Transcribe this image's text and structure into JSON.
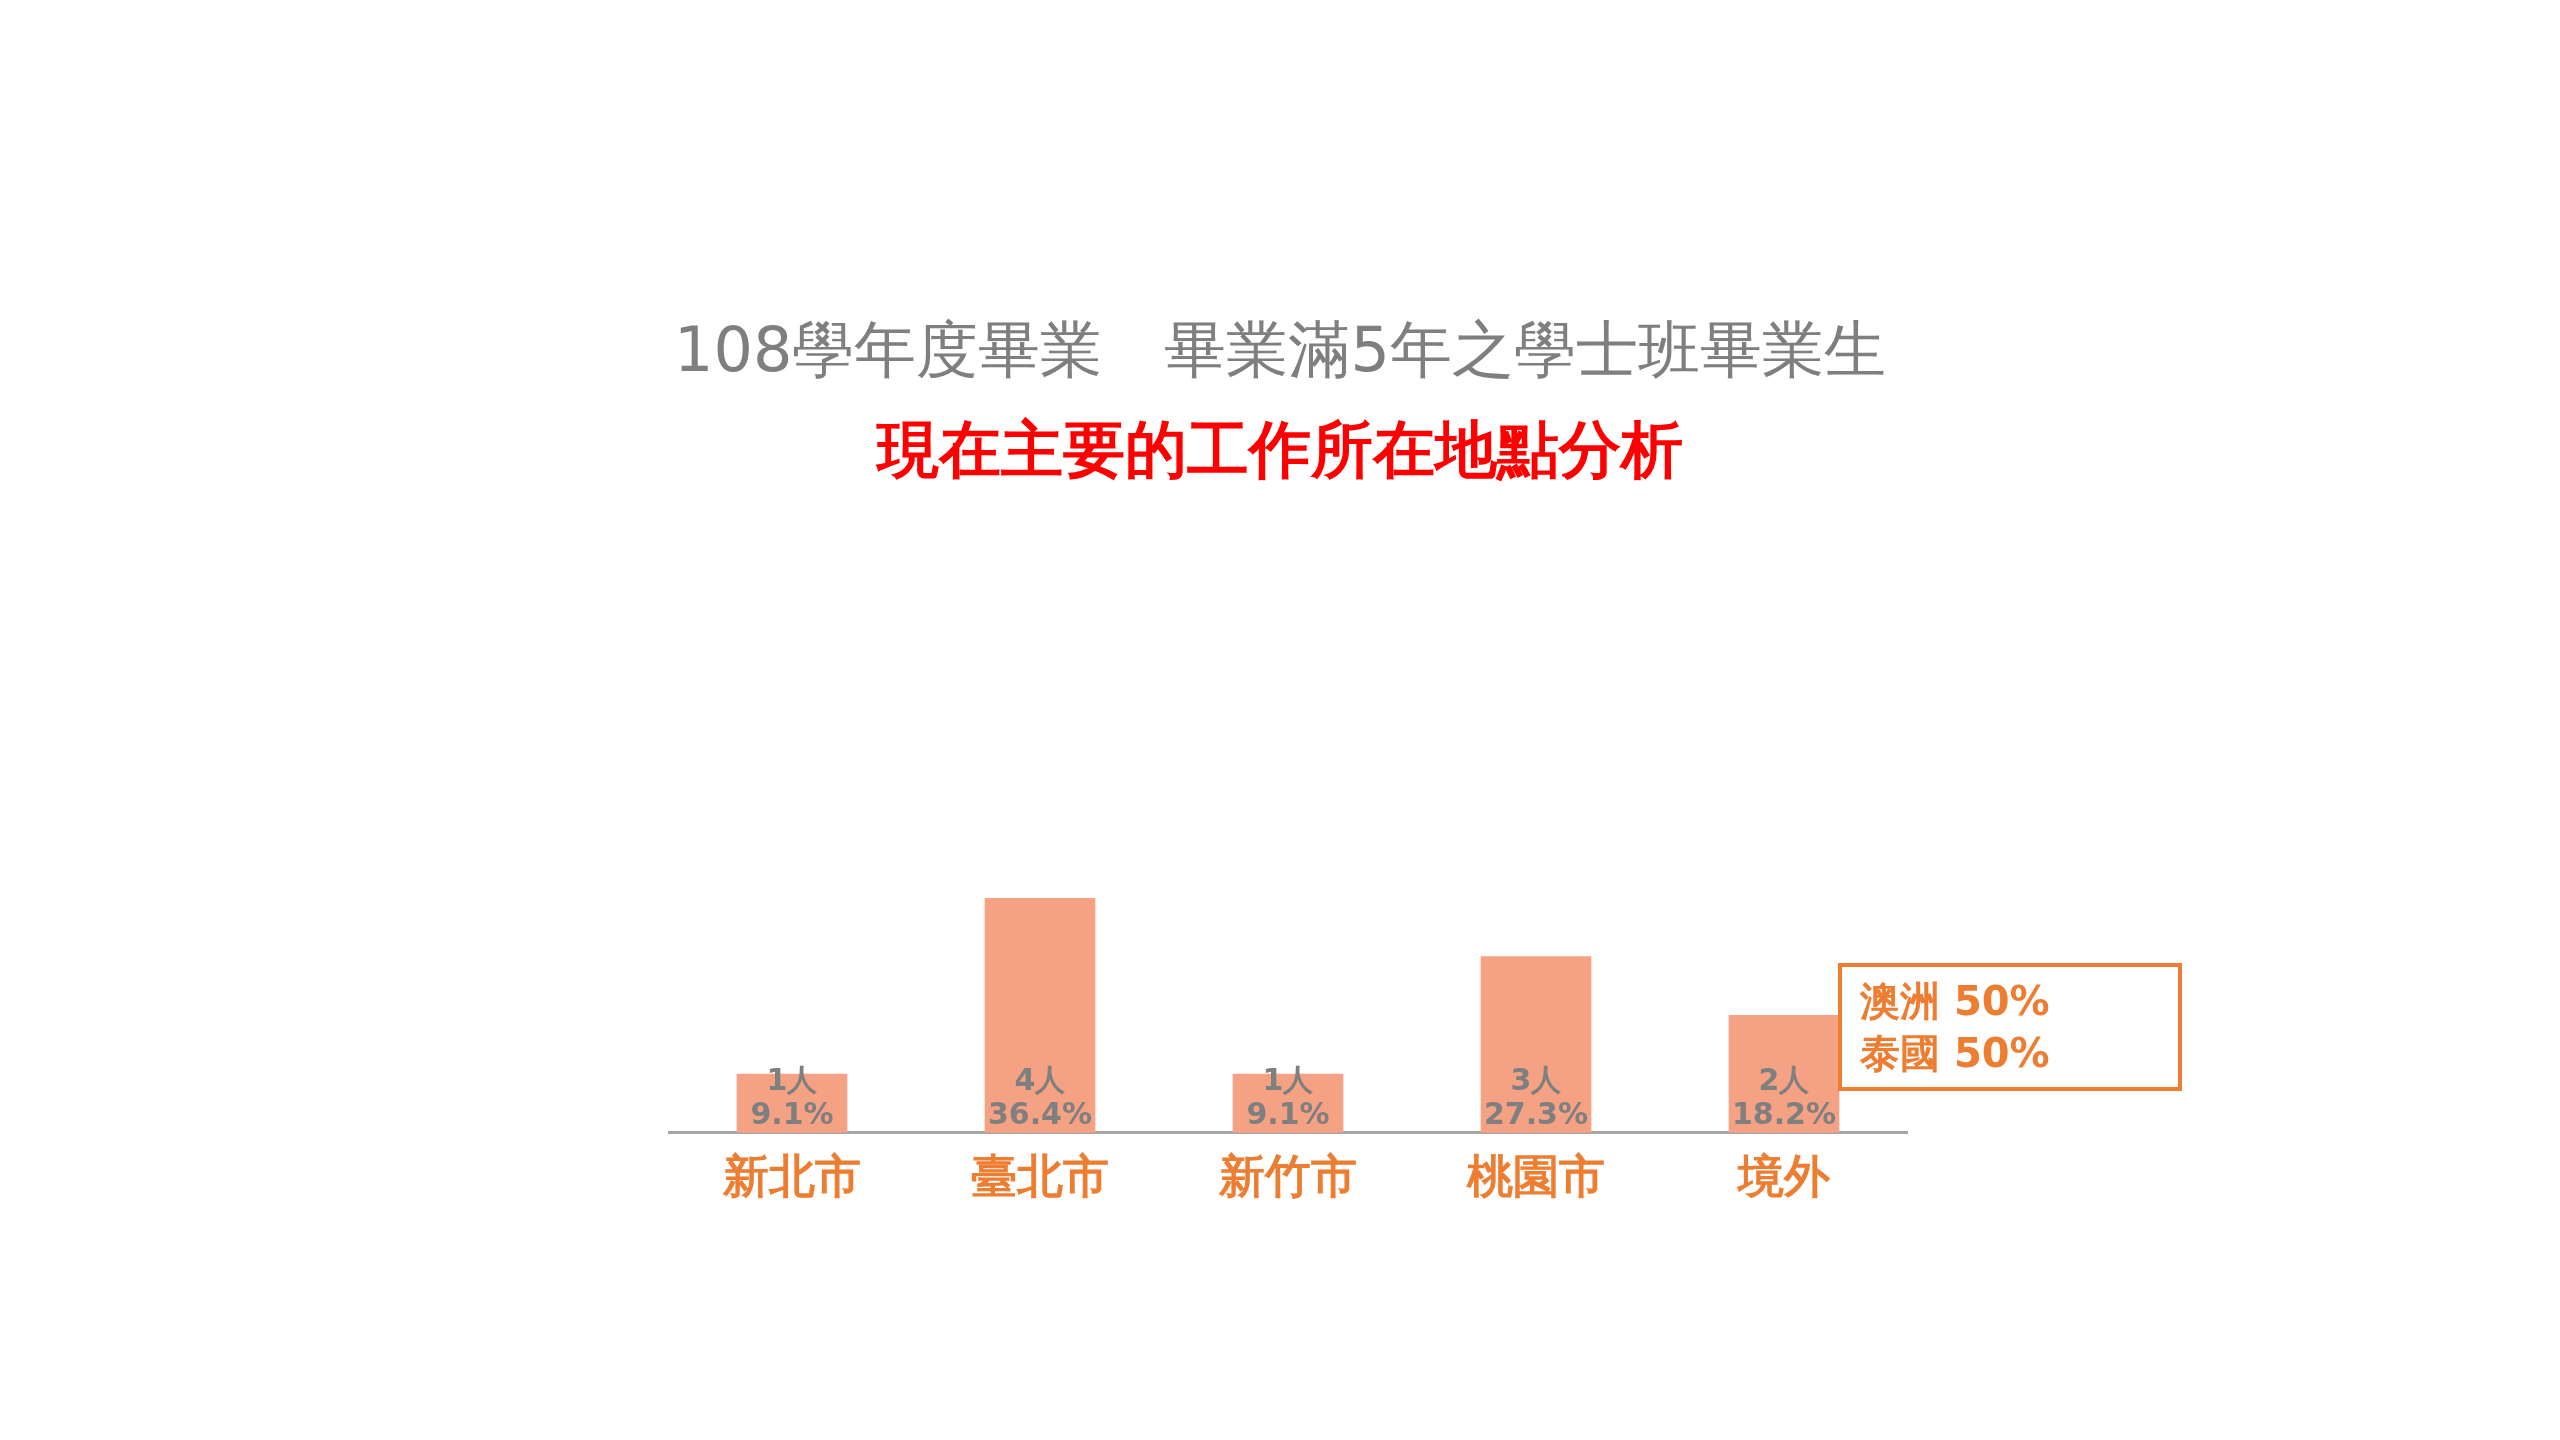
{
  "chart_data": {
    "type": "bar",
    "title": "108學年度畢業　畢業滿5年之學士班畢業生",
    "subtitle": "現在主要的工作所在地點分析",
    "categories": [
      "新北市",
      "臺北市",
      "新竹市",
      "桃園市",
      "境外"
    ],
    "values": [
      1,
      4,
      1,
      3,
      2
    ],
    "value_labels": [
      "1人\n9.1%",
      "4人\n36.4%",
      "1人\n9.1%",
      "3人\n27.3%",
      "2人\n18.2%"
    ],
    "color": "#f4a283",
    "annotations": [
      "澳洲 50%\n泰國 50%"
    ],
    "grid": false,
    "legend": false,
    "tick_labels": "x"
  }
}
